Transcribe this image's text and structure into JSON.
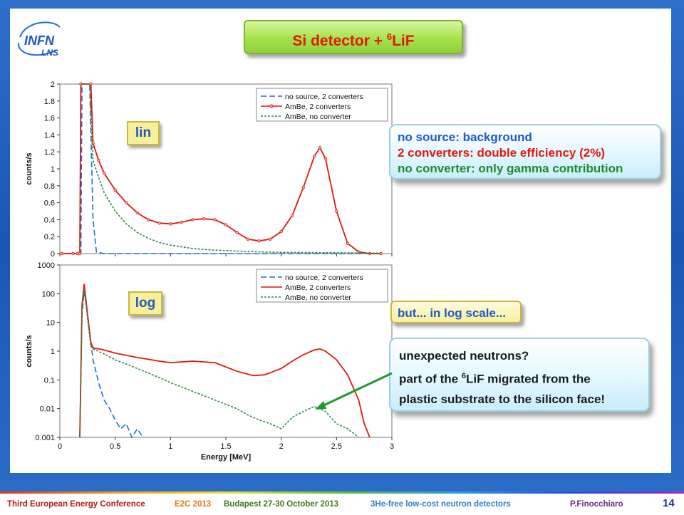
{
  "title": {
    "main": "Si detector + ",
    "sup": "6",
    "tail": "LiF"
  },
  "logo": {
    "line1": "INFN",
    "line2": "LNS"
  },
  "tags": {
    "lin": "lin",
    "log": "log"
  },
  "note1": {
    "line1": "no source: background",
    "line2": "2 converters: double efficiency (2%)",
    "line3": "no converter: only gamma contribution",
    "colors": {
      "line1": "#1f59c4",
      "line2": "#e0180f",
      "line3": "#1f8a2a"
    }
  },
  "note2": "but... in log scale...",
  "note3": {
    "line1": "unexpected neutrons?",
    "line2a": "part of the ",
    "line2sup": "6",
    "line2b": "LiF migrated from the",
    "line3": "plastic substrate to the silicon face!"
  },
  "footer": {
    "conf": "Third European Energy Conference",
    "e2c": "E2C 2013",
    "place": "Budapest 27-30 October 2013",
    "topic": "3He-free low-cost neutron detectors",
    "author": "P.Finocchiaro",
    "page": "14"
  },
  "chart_data": [
    {
      "type": "line",
      "title": "",
      "xlabel": "",
      "ylabel": "counts/s",
      "xlim": [
        0,
        3
      ],
      "ylim": [
        0,
        2
      ],
      "yticks": [
        "0",
        "0.2",
        "0.4",
        "0.6",
        "0.8",
        "1",
        "1.2",
        "1.4",
        "1.6",
        "1.8",
        "2"
      ],
      "legend": "top-right",
      "series": [
        {
          "name": "no source, 2 converters",
          "color": "#1f6fd6",
          "style": "dashed",
          "x": [
            0.02,
            0.15,
            0.19,
            0.2,
            0.27,
            0.3,
            0.33,
            0.4,
            0.6,
            1.0,
            1.5,
            2.0,
            2.5,
            2.9
          ],
          "y": [
            0,
            0,
            0,
            2,
            2,
            0.4,
            0.02,
            0,
            0,
            0,
            0,
            0,
            0,
            0
          ]
        },
        {
          "name": "AmBe, 2 converters",
          "color": "#e0180f",
          "style": "solid-markers",
          "x": [
            0.02,
            0.12,
            0.16,
            0.18,
            0.19,
            0.28,
            0.3,
            0.35,
            0.4,
            0.5,
            0.6,
            0.7,
            0.8,
            0.9,
            1.0,
            1.1,
            1.2,
            1.3,
            1.4,
            1.5,
            1.6,
            1.7,
            1.8,
            1.9,
            2.0,
            2.1,
            2.2,
            2.3,
            2.35,
            2.4,
            2.5,
            2.6,
            2.7,
            2.8,
            2.9
          ],
          "y": [
            0,
            0,
            0,
            0,
            2,
            2,
            1.3,
            1.1,
            0.95,
            0.75,
            0.6,
            0.48,
            0.4,
            0.36,
            0.35,
            0.37,
            0.4,
            0.41,
            0.4,
            0.34,
            0.25,
            0.17,
            0.15,
            0.17,
            0.26,
            0.45,
            0.78,
            1.15,
            1.25,
            1.12,
            0.5,
            0.12,
            0.02,
            0,
            0
          ]
        },
        {
          "name": "AmBe, no converter",
          "color": "#2e8a3c",
          "style": "dashed",
          "x": [
            0.19,
            0.27,
            0.3,
            0.35,
            0.4,
            0.5,
            0.6,
            0.7,
            0.8,
            0.9,
            1.0,
            1.2,
            1.4,
            1.6,
            1.8,
            2.0,
            2.4,
            2.9
          ],
          "y": [
            2,
            2,
            1.1,
            0.9,
            0.72,
            0.5,
            0.35,
            0.25,
            0.18,
            0.13,
            0.1,
            0.06,
            0.04,
            0.03,
            0.02,
            0.015,
            0.01,
            0.005
          ]
        }
      ]
    },
    {
      "type": "line",
      "title": "",
      "xlabel": "Energy [MeV]",
      "ylabel": "counts/s",
      "xlim": [
        0,
        3
      ],
      "ylim": [
        0.001,
        1000
      ],
      "yscale": "log",
      "xticks": [
        "0",
        "0.5",
        "1",
        "1.5",
        "2",
        "2.5",
        "3"
      ],
      "yticks": [
        "0.001",
        "0.01",
        "0.1",
        "1",
        "10",
        "100",
        "1000"
      ],
      "legend": "top-right",
      "series": [
        {
          "name": "no source, 2 converters",
          "color": "#1f6fd6",
          "style": "dashed",
          "x": [
            0.18,
            0.2,
            0.22,
            0.25,
            0.28,
            0.3,
            0.35,
            0.4,
            0.45,
            0.5,
            0.55,
            0.6,
            0.65,
            0.7,
            0.75
          ],
          "y": [
            0.001,
            20,
            120,
            20,
            2,
            0.5,
            0.08,
            0.02,
            0.01,
            0.004,
            0.002,
            0.003,
            0.001,
            0.002,
            0.001
          ]
        },
        {
          "name": "AmBe, 2 converters",
          "color": "#e0180f",
          "style": "solid",
          "x": [
            0.18,
            0.2,
            0.22,
            0.25,
            0.28,
            0.3,
            0.4,
            0.5,
            0.7,
            0.9,
            1.0,
            1.2,
            1.4,
            1.6,
            1.75,
            1.85,
            2.0,
            2.1,
            2.2,
            2.3,
            2.35,
            2.4,
            2.5,
            2.6,
            2.7,
            2.75,
            2.8
          ],
          "y": [
            0.001,
            40,
            220,
            20,
            2,
            1.3,
            1.1,
            0.85,
            0.6,
            0.45,
            0.4,
            0.45,
            0.4,
            0.2,
            0.14,
            0.15,
            0.25,
            0.45,
            0.75,
            1.1,
            1.2,
            1.0,
            0.5,
            0.15,
            0.02,
            0.003,
            0.001
          ]
        },
        {
          "name": "AmBe, no converter",
          "color": "#2e8a3c",
          "style": "dashed",
          "x": [
            0.18,
            0.2,
            0.22,
            0.25,
            0.28,
            0.3,
            0.4,
            0.5,
            0.7,
            0.9,
            1.0,
            1.2,
            1.4,
            1.6,
            1.7,
            1.8,
            1.9,
            2.0,
            2.1,
            2.2,
            2.3,
            2.4,
            2.5,
            2.6,
            2.7
          ],
          "y": [
            0.001,
            30,
            150,
            15,
            1.5,
            1.2,
            0.8,
            0.5,
            0.25,
            0.12,
            0.08,
            0.04,
            0.02,
            0.01,
            0.006,
            0.004,
            0.003,
            0.002,
            0.005,
            0.008,
            0.012,
            0.008,
            0.003,
            0.002,
            0.001
          ]
        }
      ]
    }
  ]
}
